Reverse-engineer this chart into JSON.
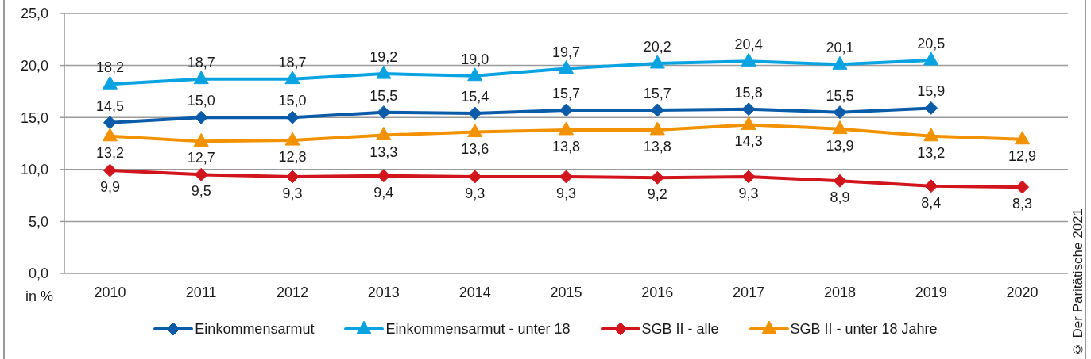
{
  "chart_data": {
    "type": "line",
    "ylabel": "in %",
    "annotations": [
      "© Der Paritätische 2021"
    ],
    "categories": [
      "2010",
      "2011",
      "2012",
      "2013",
      "2014",
      "2015",
      "2016",
      "2017",
      "2018",
      "2019",
      "2020"
    ],
    "series": [
      {
        "name": "Einkommensarmut",
        "color": "#0a5ba8",
        "marker": "diamond",
        "values": [
          14.5,
          15.0,
          15.0,
          15.5,
          15.4,
          15.7,
          15.7,
          15.8,
          15.5,
          15.9,
          null
        ],
        "value_labels": [
          "14,5",
          "15,0",
          "15,0",
          "15,5",
          "15,4",
          "15,7",
          "15,7",
          "15,8",
          "15,5",
          "15,9",
          null
        ]
      },
      {
        "name": "Einkommensarmut - unter 18",
        "color": "#0aa3e2",
        "marker": "triangle",
        "values": [
          18.2,
          18.7,
          18.7,
          19.2,
          19.0,
          19.7,
          20.2,
          20.4,
          20.1,
          20.5,
          null
        ],
        "value_labels": [
          "18,2",
          "18,7",
          "18,7",
          "19,2",
          "19,0",
          "19,7",
          "20,2",
          "20,4",
          "20,1",
          "20,5",
          null
        ]
      },
      {
        "name": "SGB II - alle",
        "color": "#d2141c",
        "marker": "diamond",
        "values": [
          9.9,
          9.5,
          9.3,
          9.4,
          9.3,
          9.3,
          9.2,
          9.3,
          8.9,
          8.4,
          8.3
        ],
        "value_labels": [
          "9,9",
          "9,5",
          "9,3",
          "9,4",
          "9,3",
          "9,3",
          "9,2",
          "9,3",
          "8,9",
          "8,4",
          "8,3"
        ]
      },
      {
        "name": "SGB II - unter 18 Jahre",
        "color": "#f39200",
        "marker": "triangle",
        "values": [
          13.2,
          12.7,
          12.8,
          13.3,
          13.6,
          13.8,
          13.8,
          14.3,
          13.9,
          13.2,
          12.9
        ],
        "value_labels": [
          "13,2",
          "12,7",
          "12,8",
          "13,3",
          "13,6",
          "13,8",
          "13,8",
          "14,3",
          "13,9",
          "13,2",
          "12,9"
        ]
      }
    ],
    "ylim": [
      0,
      25
    ],
    "yticks": [
      {
        "value": 0,
        "label": "0,0"
      },
      {
        "value": 5,
        "label": "5,0"
      },
      {
        "value": 10,
        "label": "10,0"
      },
      {
        "value": 15,
        "label": "15,0"
      },
      {
        "value": 20,
        "label": "20,0"
      },
      {
        "value": 25,
        "label": "25,0"
      }
    ],
    "grid": "y",
    "legend": "bottom",
    "line_style": "solid"
  }
}
